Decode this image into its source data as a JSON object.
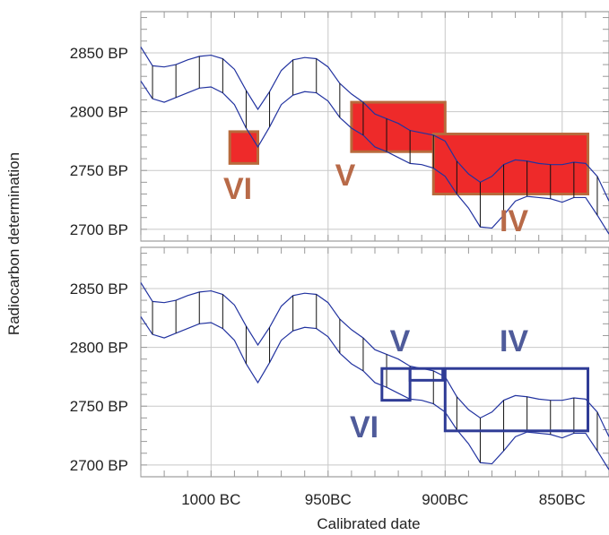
{
  "colors": {
    "curve": "#2233a0",
    "phase_fill_top": "#ee2a2a",
    "phase_stroke_top": "#b86a3c",
    "phase_label_top": "#b86a48",
    "phase_stroke_bottom": "#2f3c96",
    "phase_label_bottom": "#4f5b9a",
    "grid": "#c8c8c8",
    "frame": "#888888"
  },
  "chart_data": {
    "type": "line",
    "xlabel": "Calibrated date",
    "ylabel": "Radiocarbon determination",
    "x_axis": {
      "unit": "BC",
      "range": [
        1030,
        830
      ],
      "ticks": [
        {
          "value": 1000,
          "label": "1000 BC"
        },
        {
          "value": 950,
          "label": "950BC"
        },
        {
          "value": 900,
          "label": "900BC"
        },
        {
          "value": 850,
          "label": "850BC"
        }
      ]
    },
    "y_axis": {
      "unit": "BP",
      "ticks": [
        {
          "value": 2850,
          "label": "2850 BP"
        },
        {
          "value": 2800,
          "label": "2800 BP"
        },
        {
          "value": 2750,
          "label": "2750 BP"
        },
        {
          "value": 2700,
          "label": "2700 BP"
        }
      ]
    },
    "calibration_curve": {
      "x": [
        1030,
        1025,
        1020,
        1015,
        1010,
        1005,
        1000,
        995,
        990,
        985,
        980,
        975,
        970,
        965,
        960,
        955,
        950,
        945,
        940,
        935,
        930,
        925,
        920,
        915,
        910,
        905,
        900,
        895,
        890,
        885,
        880,
        875,
        870,
        865,
        860,
        855,
        850,
        845,
        840,
        835,
        830
      ],
      "upper": [
        2855,
        2839,
        2838,
        2840,
        2844,
        2847,
        2848,
        2845,
        2836,
        2818,
        2802,
        2817,
        2835,
        2844,
        2846,
        2845,
        2838,
        2824,
        2815,
        2808,
        2798,
        2794,
        2790,
        2784,
        2782,
        2780,
        2775,
        2758,
        2747,
        2740,
        2745,
        2755,
        2759,
        2758,
        2756,
        2755,
        2755,
        2757,
        2756,
        2745,
        2724
      ],
      "lower": [
        2826,
        2811,
        2808,
        2812,
        2816,
        2820,
        2821,
        2816,
        2806,
        2786,
        2770,
        2787,
        2806,
        2814,
        2817,
        2816,
        2809,
        2795,
        2786,
        2780,
        2770,
        2766,
        2761,
        2756,
        2755,
        2752,
        2745,
        2730,
        2718,
        2702,
        2701,
        2712,
        2724,
        2728,
        2727,
        2726,
        2723,
        2727,
        2727,
        2712,
        2696
      ]
    },
    "panels": [
      {
        "name": "top",
        "ylim": [
          2690,
          2885
        ],
        "phases": [
          {
            "label": "VI",
            "x_range": [
              992,
              980
            ],
            "y_range": [
              2756,
              2783
            ]
          },
          {
            "label": "V",
            "x_range": [
              940,
              900
            ],
            "y_range": [
              2766,
              2808
            ]
          },
          {
            "label": "IV",
            "x_range": [
              905,
              839
            ],
            "y_range": [
              2730,
              2781
            ]
          }
        ]
      },
      {
        "name": "bottom",
        "ylim": [
          2690,
          2885
        ],
        "phases": [
          {
            "label": "VI",
            "x_range": [
              927,
              915
            ],
            "y_range": [
              2755,
              2782
            ]
          },
          {
            "label": "V",
            "x_range": [
              915,
              901
            ],
            "y_range": [
              2772,
              2782
            ]
          },
          {
            "label": "IV",
            "x_range": [
              900,
              839
            ],
            "y_range": [
              2729,
              2782
            ]
          }
        ]
      }
    ]
  }
}
